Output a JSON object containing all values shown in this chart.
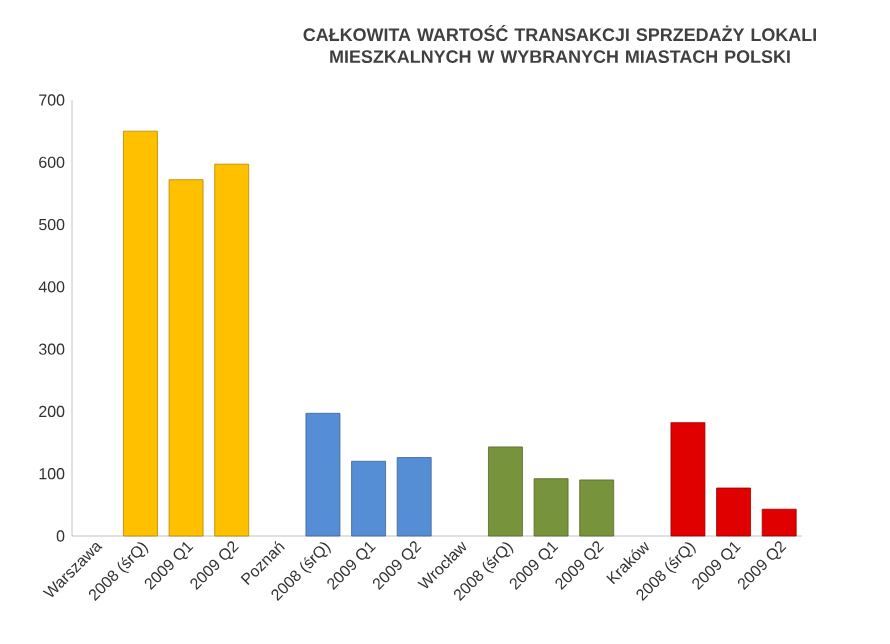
{
  "chart_data": {
    "type": "bar",
    "title": "CAŁKOWITA WARTOŚĆ TRANSAKCJI SPRZEDAŻY LOKALI MIESZKALNYCH W WYBRANYCH MIASTACH POLSKI",
    "categories": [
      "Warszawa",
      "2008 (śrQ)",
      "2009 Q1",
      "2009 Q2",
      "Poznań",
      "2008 (śrQ)",
      "2009 Q1",
      "2009 Q2",
      "Wrocław",
      "2008 (śrQ)",
      "2009 Q1",
      "2009 Q2",
      "Kraków",
      "2008 (śrQ)",
      "2009 Q1",
      "2009 Q2"
    ],
    "values": [
      null,
      650,
      572,
      597,
      null,
      197,
      120,
      126,
      null,
      143,
      92,
      90,
      null,
      182,
      77,
      43
    ],
    "colors": [
      "#ffc000",
      "#ffc000",
      "#ffc000",
      "#ffc000",
      "#558ed5",
      "#558ed5",
      "#558ed5",
      "#558ed5",
      "#77933c",
      "#77933c",
      "#77933c",
      "#77933c",
      "#e00000",
      "#e00000",
      "#e00000",
      "#e00000"
    ],
    "ylim": [
      0,
      700
    ],
    "yticks": [
      0,
      100,
      200,
      300,
      400,
      500,
      600,
      700
    ]
  }
}
